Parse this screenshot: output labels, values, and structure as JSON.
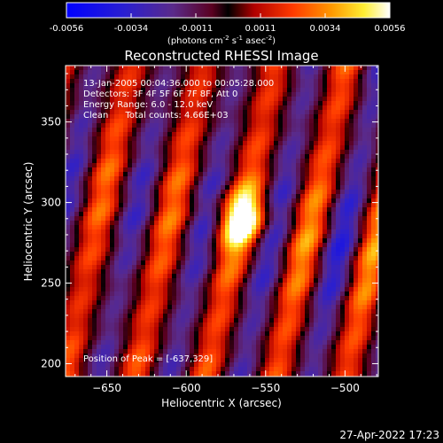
{
  "colorbar": {
    "tick_labels": [
      "-0.0056",
      "-0.0034",
      "-0.0011",
      "0.0011",
      "0.0034",
      "0.0056"
    ],
    "unit_main": "(photons cm",
    "unit_exp1": "-2",
    "unit_mid": " s",
    "unit_exp2": "-1",
    "unit_end": " asec",
    "unit_exp3": "-2",
    "unit_close": ")",
    "range": [
      -0.0056,
      0.0056
    ]
  },
  "chart_data": {
    "type": "heatmap",
    "title": "Reconstructed RHESSI Image",
    "xlabel": "Heliocentric X (arcsec)",
    "ylabel": "Heliocentric Y (arcsec)",
    "xlim": [
      -676,
      -479
    ],
    "ylim": [
      192,
      385
    ],
    "x_ticks": [
      -650,
      -600,
      -550,
      -500
    ],
    "y_ticks": [
      200,
      250,
      300,
      350
    ],
    "colormap": "rhessi-blue-purple-red-yellow-white",
    "value_range": [
      -0.0056,
      0.0056
    ],
    "peak": [
      -637,
      329
    ],
    "info_lines": [
      "13-Jan-2005 00:04:36.000 to 00:05:28.000",
      "Detectors: 3F 4F 5F 6F 7F 8F, Att 0",
      "Energy Range: 6.0 - 12.0 keV",
      "Clean      Total counts: 4.66E+03"
    ],
    "peak_label": "Position of Peak = [-637,329]"
  },
  "footer": {
    "timestamp": "27-Apr-2022 17:23"
  }
}
